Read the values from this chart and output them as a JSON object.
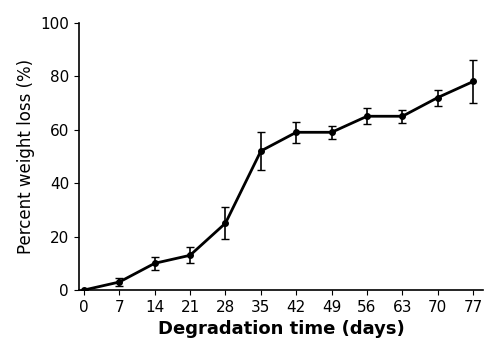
{
  "x": [
    0,
    7,
    14,
    21,
    28,
    35,
    42,
    49,
    56,
    63,
    70,
    77
  ],
  "y": [
    0,
    3,
    10,
    13,
    25,
    52,
    59,
    59,
    65,
    65,
    72,
    78
  ],
  "yerr": [
    0,
    1.5,
    2.5,
    3.0,
    6.0,
    7.0,
    4.0,
    2.5,
    3.0,
    2.5,
    3.0,
    8.0
  ],
  "xlabel": "Degradation time (days)",
  "ylabel": "Percent weight loss (%)",
  "xlim": [
    -1,
    79
  ],
  "ylim": [
    0,
    100
  ],
  "xticks": [
    0,
    7,
    14,
    21,
    28,
    35,
    42,
    49,
    56,
    63,
    70,
    77
  ],
  "yticks": [
    0,
    20,
    40,
    60,
    80,
    100
  ],
  "line_color": "#000000",
  "marker": "o",
  "marker_size": 4,
  "line_width": 2.0,
  "capsize": 3,
  "elinewidth": 1.2,
  "xlabel_fontsize": 13,
  "ylabel_fontsize": 12,
  "tick_fontsize": 11,
  "background_color": "#ffffff"
}
